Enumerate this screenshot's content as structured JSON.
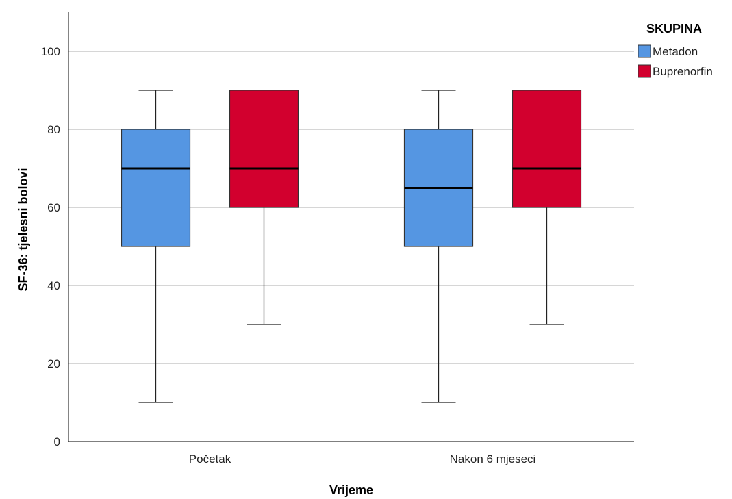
{
  "chart_data": {
    "type": "boxplot",
    "xlabel": "Vrijeme",
    "ylabel": "SF-36: tjelesni bolovi",
    "ylim": [
      0,
      110
    ],
    "yticks": [
      0,
      20,
      40,
      60,
      80,
      100
    ],
    "ytick_labels": [
      "0",
      "20",
      "40",
      "60",
      "80",
      "100"
    ],
    "grid": true,
    "legend_position": "top-right, outside plot",
    "legend_title": "SKUPINA",
    "categories": [
      "Početak",
      "Nakon 6 mjeseci"
    ],
    "series": [
      {
        "name": "Metadon",
        "color": "#5596E2",
        "boxes": [
          {
            "min": 10,
            "q1": 50,
            "median": 70,
            "q3": 80,
            "max": 90
          },
          {
            "min": 10,
            "q1": 50,
            "median": 65,
            "q3": 80,
            "max": 90
          }
        ]
      },
      {
        "name": "Buprenorfin",
        "color": "#D2002E",
        "boxes": [
          {
            "min": 30,
            "q1": 60,
            "median": 70,
            "q3": 90,
            "max": 90
          },
          {
            "min": 30,
            "q1": 60,
            "median": 70,
            "q3": 90,
            "max": 90
          }
        ]
      }
    ]
  }
}
